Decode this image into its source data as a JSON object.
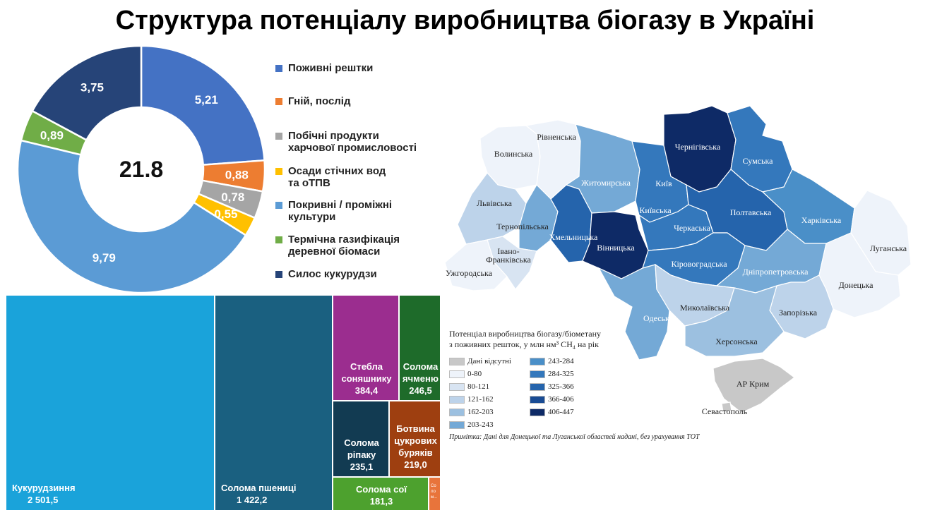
{
  "page": {
    "title": "Структура потенціалу виробництва біогазу в Україні"
  },
  "chart_data": [
    {
      "type": "pie",
      "center_label": "21.8",
      "slices": [
        {
          "name": "Поживні рештки",
          "value": 5.21,
          "label": "5,21",
          "color": "#4472C4"
        },
        {
          "name": "Гній, послід",
          "value": 0.88,
          "label": "0,88",
          "color": "#ED7D31"
        },
        {
          "name": "Побічні продукти харчової промисловості",
          "value": 0.78,
          "label": "0,78",
          "color": "#A5A5A5"
        },
        {
          "name": "Осади стічних вод та оТПВ",
          "value": 0.55,
          "label": "0,55",
          "color": "#FFC000"
        },
        {
          "name": "Покривні / проміжні культури",
          "value": 9.79,
          "label": "9,79",
          "color": "#5B9BD5"
        },
        {
          "name": "Термічна газифікація деревної біомаси",
          "value": 0.89,
          "label": "0,89",
          "color": "#70AD47"
        },
        {
          "name": "Силос кукурудзи",
          "value": 3.75,
          "label": "3,75",
          "color": "#264478"
        }
      ],
      "legend": {
        "placement": "right",
        "items": [
          {
            "lines": [
              "Поживні рештки"
            ]
          },
          {
            "lines": [
              "Гній, послід"
            ]
          },
          {
            "lines": [
              "Побічні продукти",
              "харчової промисловості"
            ]
          },
          {
            "lines": [
              "Осади стічних вод",
              "та оТПВ"
            ]
          },
          {
            "lines": [
              "Покривні / проміжні",
              "культури"
            ]
          },
          {
            "lines": [
              "Термічна газифікація",
              "деревної біомаси"
            ]
          },
          {
            "lines": [
              "Силос кукурудзи"
            ]
          }
        ]
      }
    },
    {
      "type": "treemap",
      "items": [
        {
          "lines": [
            "Кукурудзиння"
          ],
          "value": 2501.5,
          "label": "2 501,5",
          "color": "#1AA3DA"
        },
        {
          "lines": [
            "Солома пшениці"
          ],
          "value": 1422.2,
          "label": "1 422,2",
          "color": "#1A6080"
        },
        {
          "lines": [
            "Стебла",
            "соняшнику"
          ],
          "value": 384.4,
          "label": "384,4",
          "color": "#9B2D8F"
        },
        {
          "lines": [
            "Солома",
            "ячменю"
          ],
          "value": 246.5,
          "label": "246,5",
          "color": "#1E6B2A"
        },
        {
          "lines": [
            "Солома",
            "ріпаку"
          ],
          "value": 235.1,
          "label": "235,1",
          "color": "#123B52"
        },
        {
          "lines": [
            "Ботвина",
            "цукрових",
            "буряків"
          ],
          "value": 219.0,
          "label": "219,0",
          "color": "#9E3F10"
        },
        {
          "lines": [
            "Солома сої"
          ],
          "value": 181.3,
          "label": "181,3",
          "color": "#4DA12E"
        },
        {
          "lines": [
            "Со",
            "ло",
            "м..."
          ],
          "value": 30,
          "label": "",
          "color": "#E8743B"
        }
      ]
    },
    {
      "type": "choropleth-map",
      "legend_title": [
        "Потенціал виробництва біогазу/біометану",
        "з поживних решток, у млн нм³ CH₄ на рік"
      ],
      "classes": [
        {
          "label": "Дані відсутні",
          "color": "#C8C8C8"
        },
        {
          "label": "0-80",
          "color": "#EEF3FA"
        },
        {
          "label": "80-121",
          "color": "#D8E4F2"
        },
        {
          "label": "121-162",
          "color": "#BDD3EA"
        },
        {
          "label": "162-203",
          "color": "#9CC0E0"
        },
        {
          "label": "203-243",
          "color": "#74A9D6"
        },
        {
          "label": "243-284",
          "color": "#4A8FC8"
        },
        {
          "label": "284-325",
          "color": "#3478BC"
        },
        {
          "label": "325-366",
          "color": "#2564AC"
        },
        {
          "label": "366-406",
          "color": "#1A4C94"
        },
        {
          "label": "406-447",
          "color": "#0E2A66"
        }
      ],
      "regions": [
        {
          "name": "Волинська",
          "class": 1
        },
        {
          "name": "Рівненська",
          "class": 1
        },
        {
          "name": "Житомирська",
          "class": 5
        },
        {
          "name": "Київ",
          "class": 0
        },
        {
          "name": "Київська",
          "class": 7
        },
        {
          "name": "Чернігівська",
          "class": 10
        },
        {
          "name": "Сумська",
          "class": 7
        },
        {
          "name": "Львівська",
          "class": 3
        },
        {
          "name": "Тернопільська",
          "class": 5
        },
        {
          "name": "Хмельницька",
          "class": 8
        },
        {
          "name": "Вінницька",
          "class": 10
        },
        {
          "name": "Черкаська",
          "class": 7
        },
        {
          "name": "Полтавська",
          "class": 8
        },
        {
          "name": "Харківська",
          "class": 6
        },
        {
          "name": "Луганська",
          "class": 1
        },
        {
          "name": "Івано-Франківська",
          "class": 2
        },
        {
          "name": "Ужгородська",
          "class": 1
        },
        {
          "name": "Кіровоградська",
          "class": 7
        },
        {
          "name": "Дніпропетровська",
          "class": 5
        },
        {
          "name": "Донецька",
          "class": 1
        },
        {
          "name": "Одеська",
          "class": 5
        },
        {
          "name": "Миколаївська",
          "class": 3
        },
        {
          "name": "Запорізька",
          "class": 3
        },
        {
          "name": "Херсонська",
          "class": 4
        },
        {
          "name": "АР Крим",
          "class": 0
        },
        {
          "name": "Севастополь",
          "class": 0
        }
      ],
      "note": "Примітка: Дані для Донецької та Луганської областей надані, без урахування ТОТ"
    }
  ]
}
